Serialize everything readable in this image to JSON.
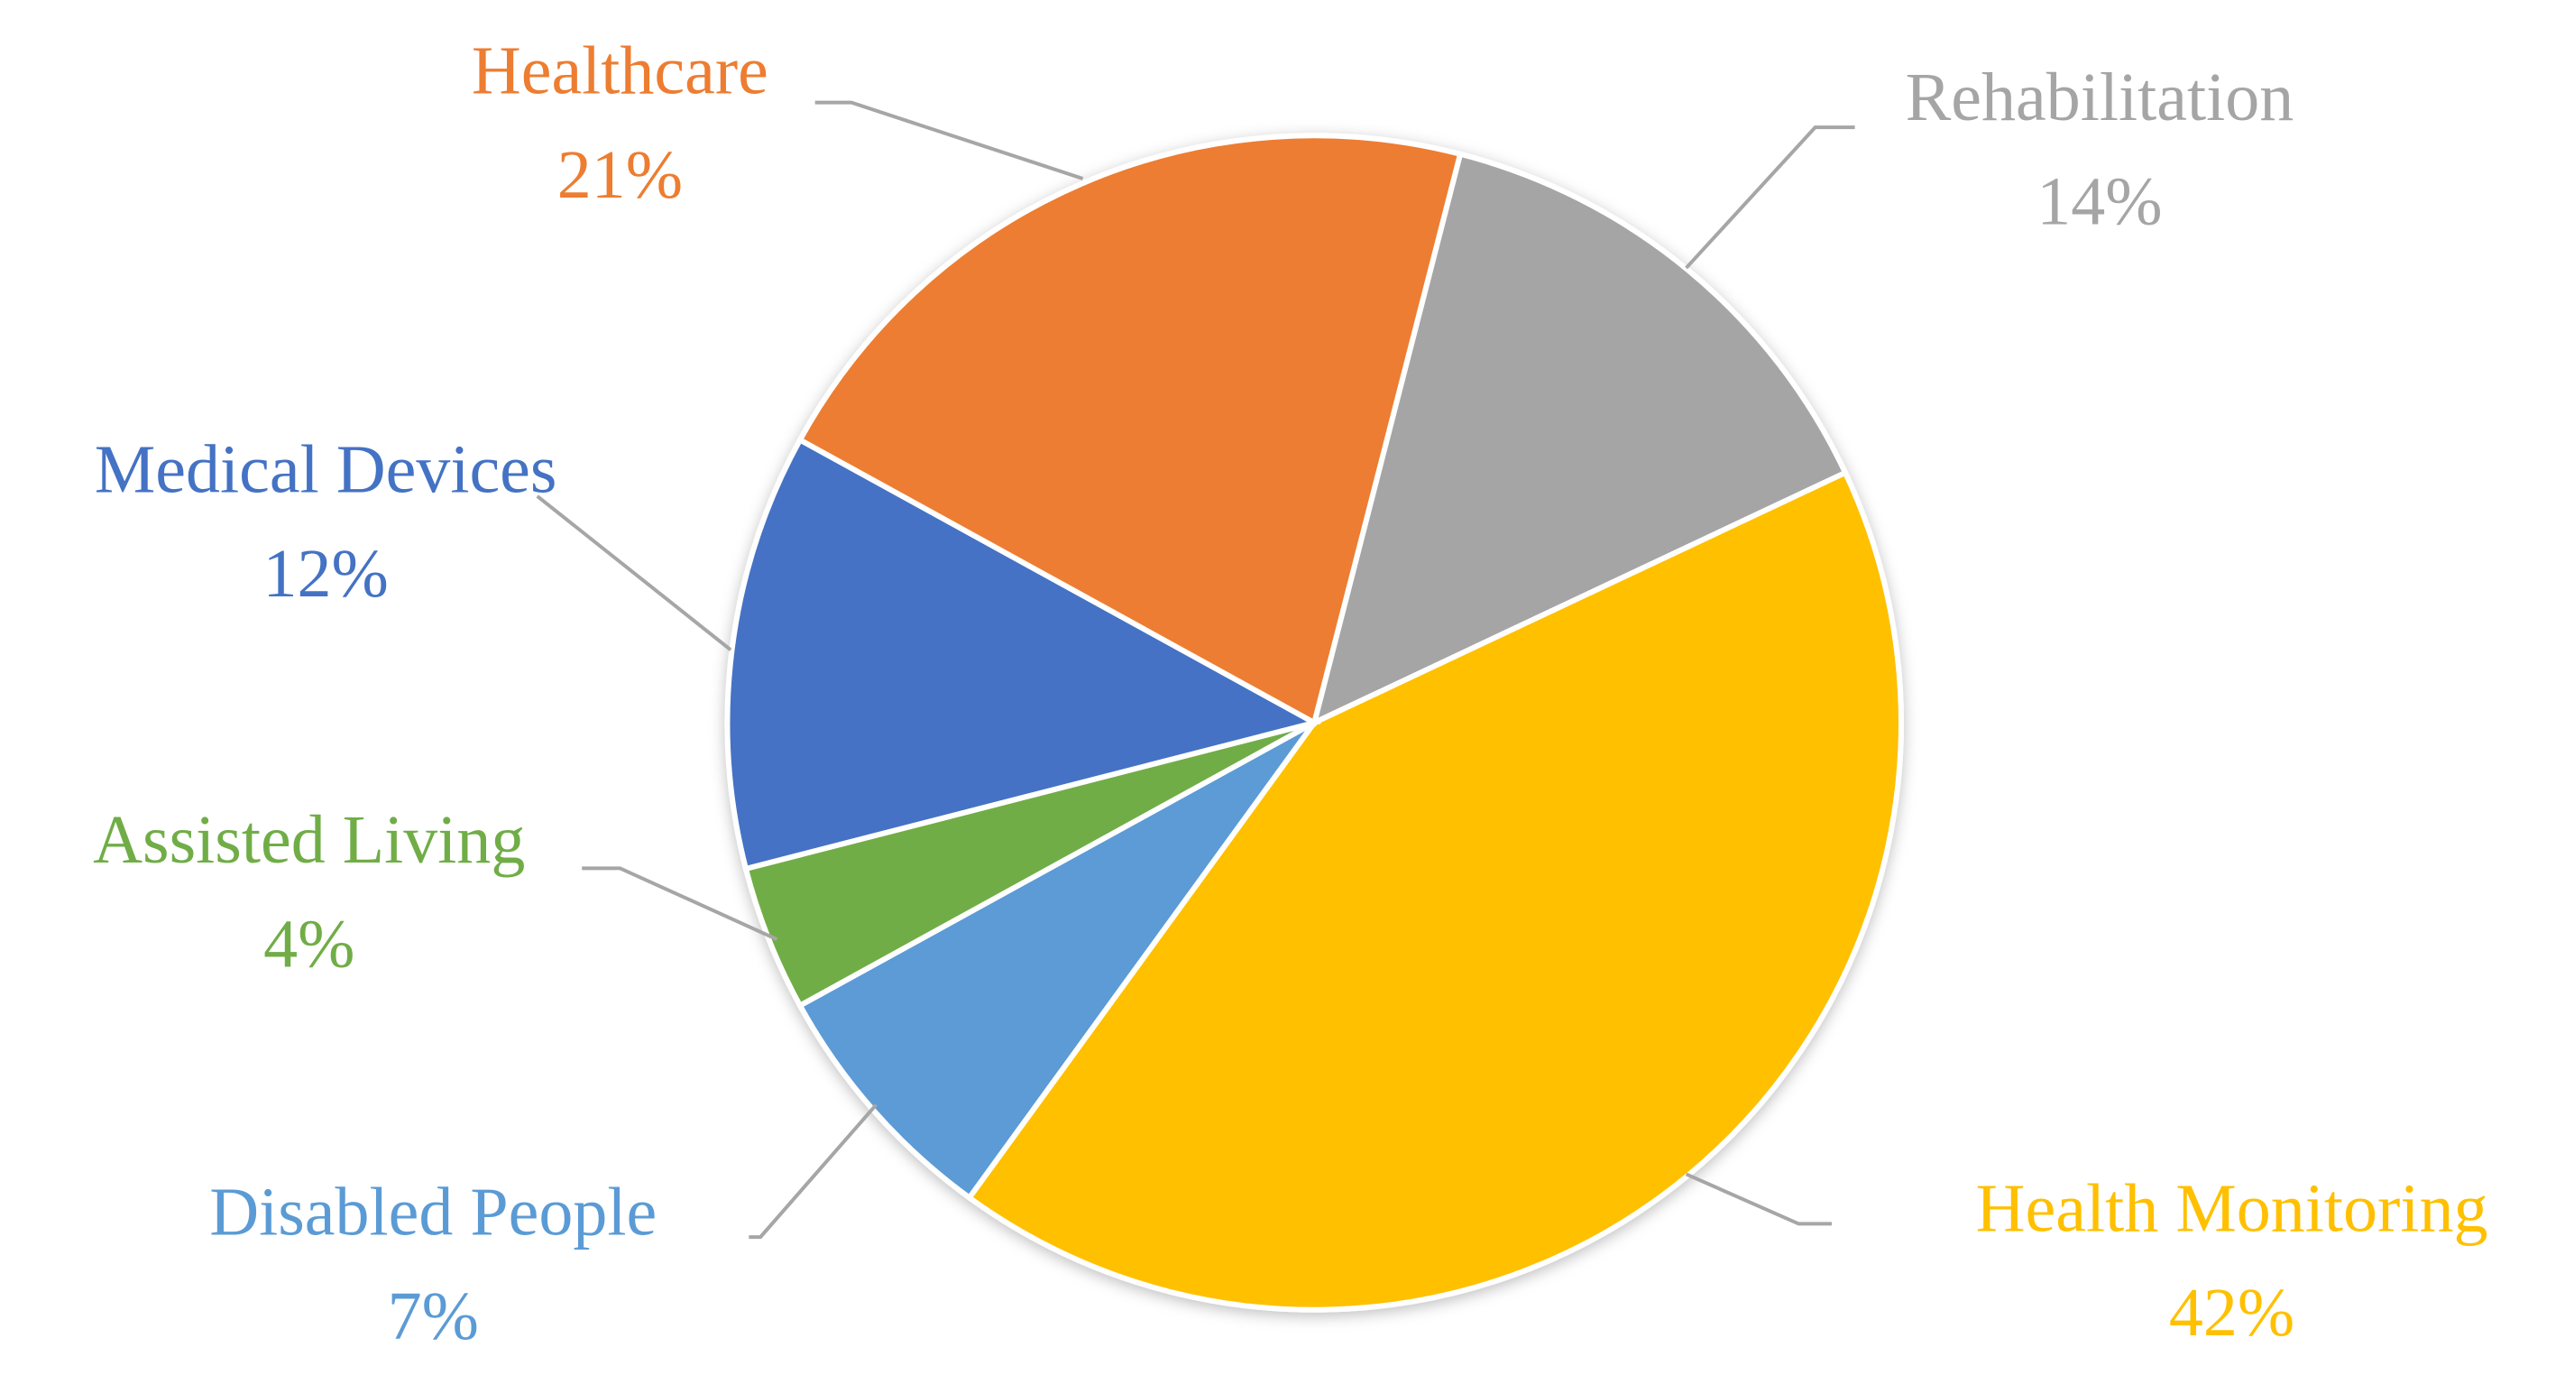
{
  "chart_data": {
    "type": "pie",
    "categories": [
      "Rehabilitation",
      "Health Monitoring",
      "Disabled People",
      "Assisted Living",
      "Medical Devices",
      "Healthcare"
    ],
    "values": [
      14,
      42,
      7,
      4,
      12,
      21
    ],
    "value_labels": [
      "14%",
      "42%",
      "7%",
      "4%",
      "12%",
      "21%"
    ],
    "colors": [
      "#a5a5a5",
      "#ffc000",
      "#5b9bd5",
      "#70ad47",
      "#4472c4",
      "#ed7d31"
    ]
  }
}
